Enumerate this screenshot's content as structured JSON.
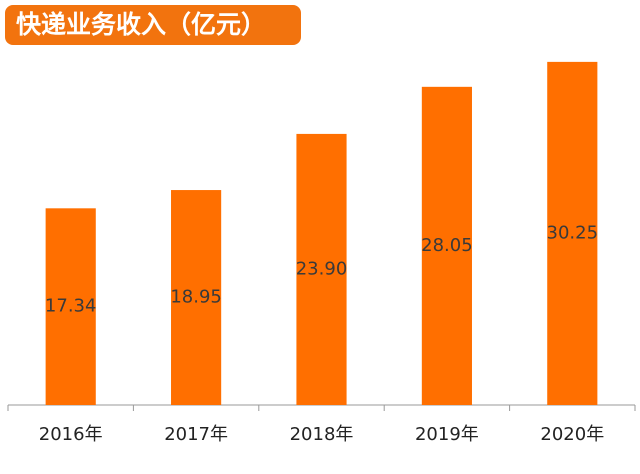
{
  "chart_data": {
    "type": "bar",
    "title": "快递业务收入（亿元）",
    "categories": [
      "2016年",
      "2017年",
      "2018年",
      "2019年",
      "2020年"
    ],
    "values": [
      17.34,
      18.95,
      23.9,
      28.05,
      30.25
    ],
    "value_labels": [
      "17.34",
      "18.95",
      "23.90",
      "28.05",
      "30.25"
    ],
    "color": "#ff6f00",
    "ylim": [
      0,
      35
    ]
  }
}
